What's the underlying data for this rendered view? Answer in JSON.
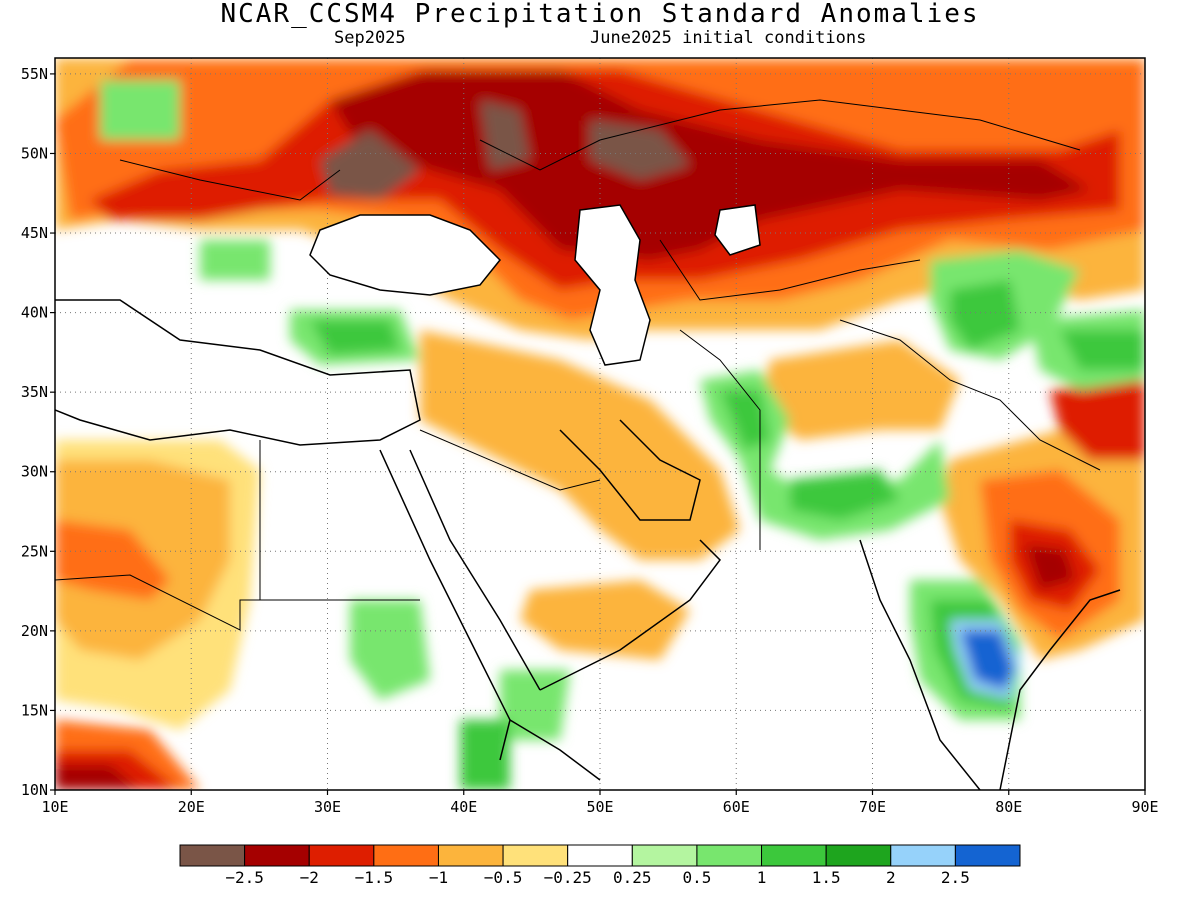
{
  "title": "NCAR_CCSM4 Precipitation Standard Anomalies",
  "subtitle_left": "Sep2025",
  "subtitle_right": "June2025 initial conditions",
  "map": {
    "lon_range": [
      10,
      90
    ],
    "lat_range": [
      10,
      56
    ],
    "x_ticks": [
      10,
      20,
      30,
      40,
      50,
      60,
      70,
      80,
      90
    ],
    "x_tick_labels": [
      "10E",
      "20E",
      "30E",
      "40E",
      "50E",
      "60E",
      "70E",
      "80E",
      "90E"
    ],
    "y_ticks": [
      10,
      15,
      20,
      25,
      30,
      35,
      40,
      45,
      50,
      55
    ],
    "y_tick_labels": [
      "10N",
      "15N",
      "20N",
      "25N",
      "30N",
      "35N",
      "40N",
      "45N",
      "50N",
      "55N"
    ],
    "grid": "dotted"
  },
  "colorbar": {
    "colors": [
      "#7a5547",
      "#a50000",
      "#de1e00",
      "#ff6e14",
      "#fcb43c",
      "#ffe17a",
      "#ffffff",
      "#b4f5a0",
      "#78e66e",
      "#3cc83c",
      "#1ea51e",
      "#96d2fa",
      "#1464d2"
    ],
    "labels": [
      "-2.5",
      "-2",
      "-1.5",
      "-1",
      "-0.5",
      "-0.25",
      "0.25",
      "0.5",
      "1",
      "1.5",
      "2",
      "2.5"
    ]
  }
}
